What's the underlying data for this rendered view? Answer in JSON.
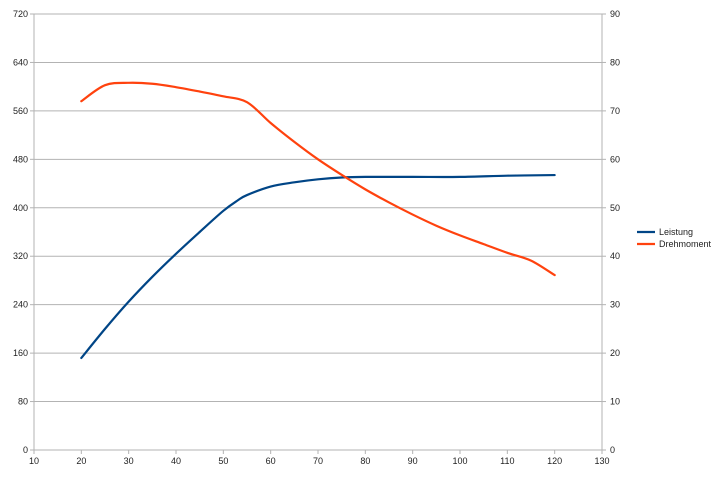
{
  "chart_data": {
    "type": "line",
    "title": "",
    "xlabel": "",
    "ylabel": "",
    "y2label": "",
    "xlim": [
      10,
      130
    ],
    "xticks": [
      10,
      20,
      30,
      40,
      50,
      60,
      70,
      80,
      90,
      100,
      110,
      120,
      130
    ],
    "ylim": [
      0,
      720
    ],
    "yticks": [
      0,
      80,
      160,
      240,
      320,
      400,
      480,
      560,
      640,
      720
    ],
    "y2lim": [
      0,
      90
    ],
    "y2ticks": [
      0,
      10,
      20,
      30,
      40,
      50,
      60,
      70,
      80,
      90
    ],
    "grid": "horizontal",
    "legend_position": "right",
    "series": [
      {
        "name": "Leistung",
        "axis": "left",
        "color": "#004586",
        "x": [
          20,
          25,
          30,
          35,
          40,
          45,
          50,
          53,
          55,
          60,
          65,
          70,
          75,
          80,
          90,
          100,
          110,
          120
        ],
        "y": [
          152,
          200,
          245,
          286,
          324,
          360,
          395,
          412,
          421,
          435,
          442,
          447,
          450,
          451,
          451,
          451,
          453,
          454
        ]
      },
      {
        "name": "Drehmoment",
        "axis": "right",
        "color": "#ff420e",
        "x": [
          20,
          25,
          30,
          35,
          40,
          45,
          50,
          55,
          60,
          65,
          70,
          75,
          80,
          85,
          90,
          95,
          100,
          105,
          110,
          115,
          120
        ],
        "y": [
          72,
          75.3,
          75.8,
          75.6,
          74.9,
          74,
          73,
          71.8,
          67.5,
          63.6,
          60,
          56.8,
          53.8,
          51.1,
          48.6,
          46.3,
          44.3,
          42.5,
          40.7,
          39.1,
          36.1
        ]
      }
    ]
  }
}
